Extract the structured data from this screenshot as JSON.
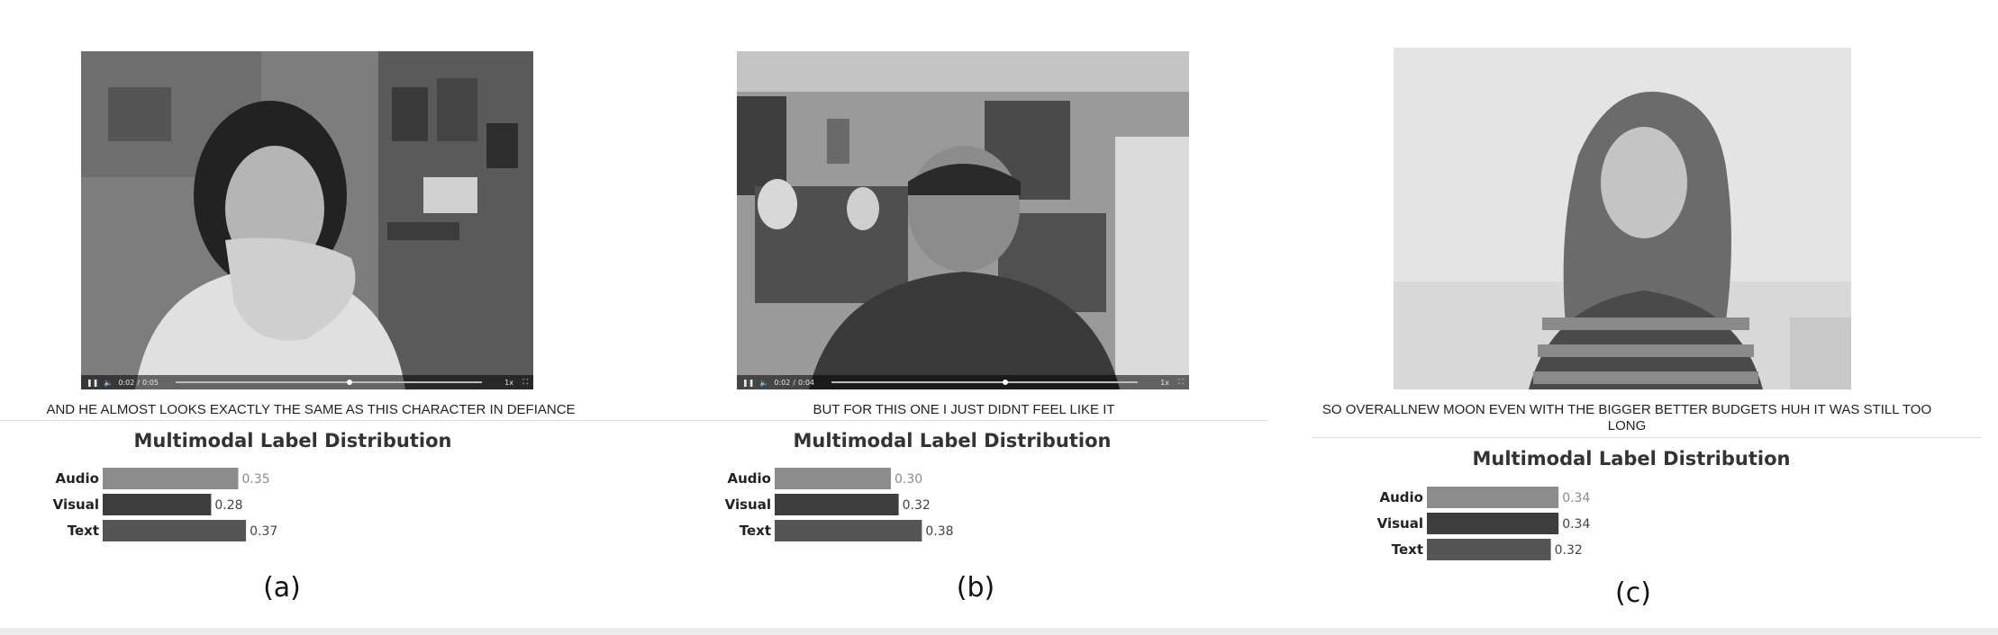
{
  "panels": [
    {
      "label": "(a)",
      "caption": "AND HE ALMOST LOOKS EXACTLY THE SAME AS THIS CHARACTER IN DEFIANCE",
      "player": {
        "current_time": "0:02",
        "duration": "0:05",
        "separator": "/",
        "speed": "1x",
        "progress": 0.56
      },
      "subject": "woman-dark-hair-hand-raised"
    },
    {
      "label": "(b)",
      "caption": "BUT FOR THIS ONE I JUST DIDNT FEEL LIKE IT",
      "player": {
        "current_time": "0:02",
        "duration": "0:04",
        "separator": "/",
        "speed": "1x",
        "progress": 0.5
      },
      "subject": "man-with-cap-and-beard"
    },
    {
      "label": "(c)",
      "caption": "SO OVERALLNEW MOON EVEN WITH THE BIGGER BETTER BUDGETS HUH IT WAS STILL TOO LONG",
      "player": null,
      "subject": "young-woman-striped-shirt"
    }
  ],
  "chart_data": [
    {
      "type": "bar",
      "orientation": "horizontal",
      "title": "Multimodal Label Distribution",
      "categories": [
        "Audio",
        "Visual",
        "Text"
      ],
      "values": [
        0.35,
        0.28,
        0.37
      ],
      "value_labels": [
        "0.35",
        "0.28",
        "0.37"
      ],
      "xlim": [
        0,
        1
      ],
      "colors": [
        "#8c8c8c",
        "#3d3d3d",
        "#555555"
      ],
      "grid": false
    },
    {
      "type": "bar",
      "orientation": "horizontal",
      "title": "Multimodal Label Distribution",
      "categories": [
        "Audio",
        "Visual",
        "Text"
      ],
      "values": [
        0.3,
        0.32,
        0.38
      ],
      "value_labels": [
        "0.30",
        "0.32",
        "0.38"
      ],
      "xlim": [
        0,
        1
      ],
      "colors": [
        "#8c8c8c",
        "#3d3d3d",
        "#555555"
      ],
      "grid": false
    },
    {
      "type": "bar",
      "orientation": "horizontal",
      "title": "Multimodal Label Distribution",
      "categories": [
        "Audio",
        "Visual",
        "Text"
      ],
      "values": [
        0.34,
        0.34,
        0.32
      ],
      "value_labels": [
        "0.34",
        "0.34",
        "0.32"
      ],
      "xlim": [
        0,
        1
      ],
      "colors": [
        "#8c8c8c",
        "#3d3d3d",
        "#555555"
      ],
      "grid": false
    }
  ]
}
